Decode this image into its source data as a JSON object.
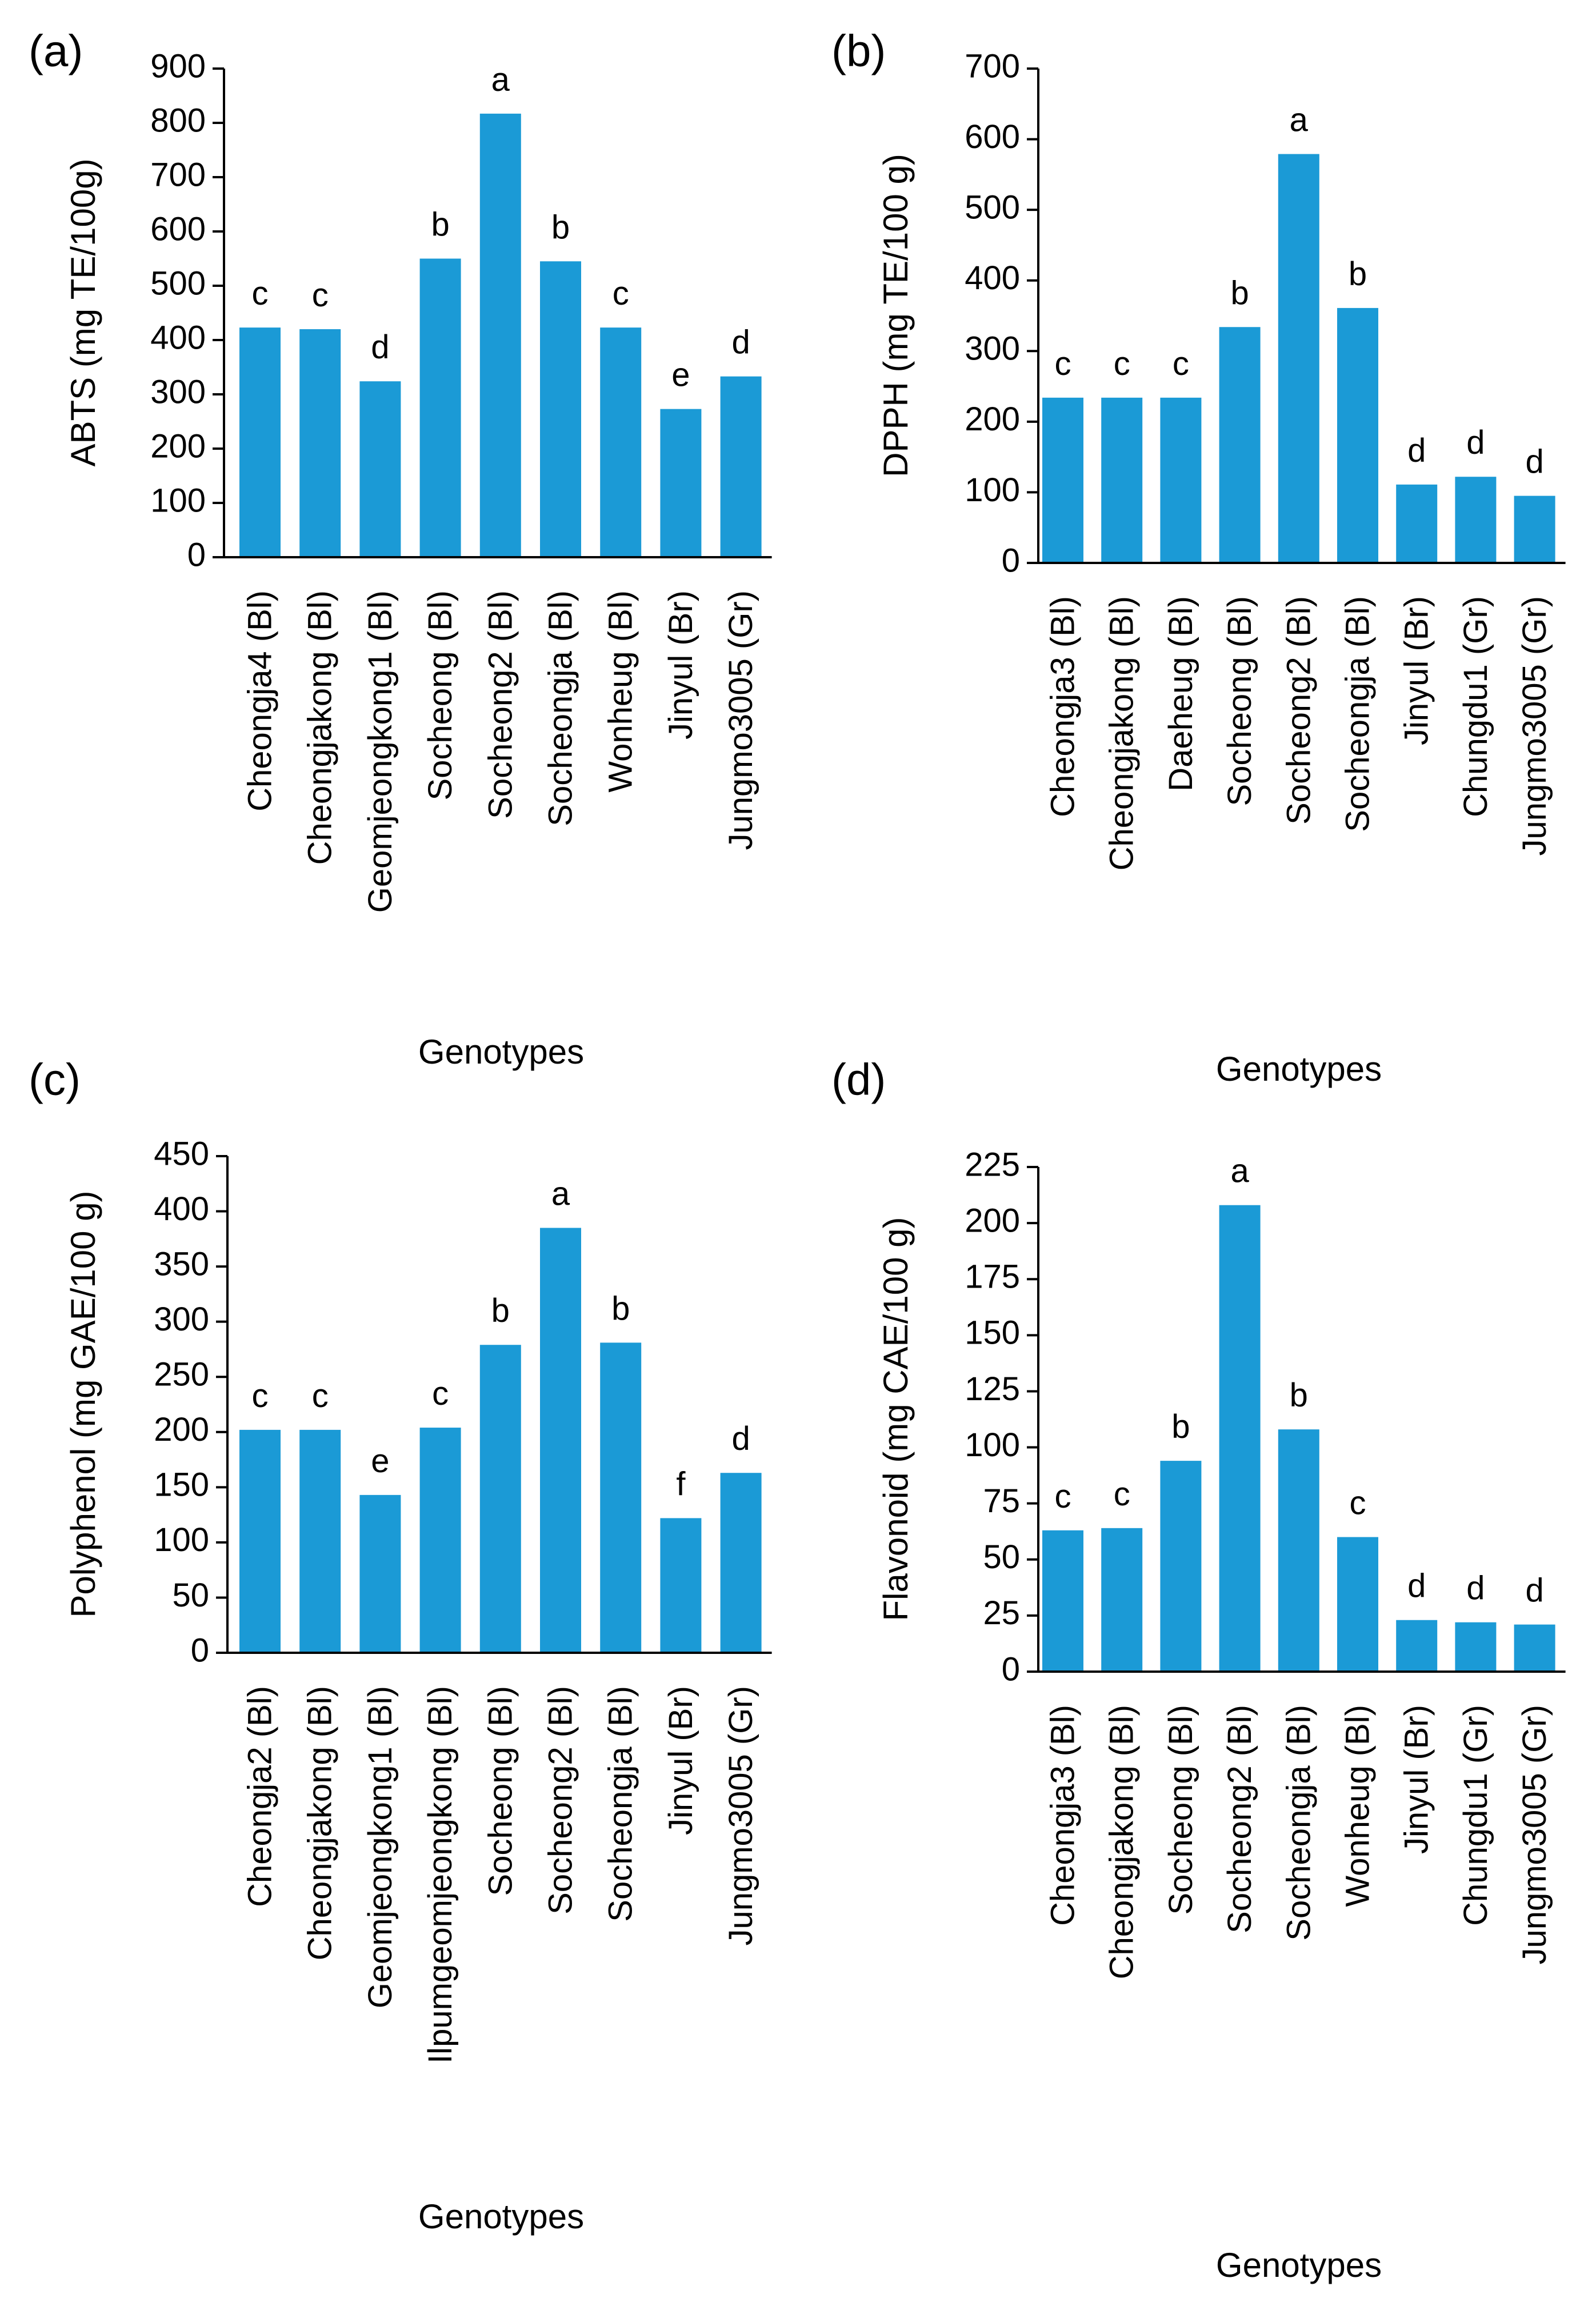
{
  "colors": {
    "bar": "#1b9ad6",
    "axis": "#000000",
    "background": "#ffffff"
  },
  "chart_data": [
    {
      "panel_label": "(a)",
      "type": "bar",
      "categories": [
        "Cheongja4 (Bl)",
        "Cheongjakong (Bl)",
        "Geomjeongkong1 (Bl)",
        "Socheong (Bl)",
        "Socheong2 (Bl)",
        "Socheongja (Bl)",
        "Wonheug (Bl)",
        "Jinyul (Br)",
        "Jungmo3005 (Gr)"
      ],
      "values": [
        423,
        420,
        324,
        550,
        817,
        545,
        423,
        273,
        333
      ],
      "significance_letters": [
        "c",
        "c",
        "d",
        "b",
        "a",
        "b",
        "c",
        "e",
        "d"
      ],
      "ylabel": "ABTS (mg TE/100g)",
      "xlabel": "Genotypes",
      "ylim": [
        0,
        900
      ],
      "yticks": [
        0,
        100,
        200,
        300,
        400,
        500,
        600,
        700,
        800,
        900
      ],
      "grid": false,
      "legend": "none"
    },
    {
      "panel_label": "(b)",
      "type": "bar",
      "categories": [
        "Cheongja3 (Bl)",
        "Cheongjakong (Bl)",
        "Daeheug (Bl)",
        "Socheong (Bl)",
        "Socheong2 (Bl)",
        "Socheongja (Bl)",
        "Jinyul (Br)",
        "Chungdu1 (Gr)",
        "Jungmo3005 (Gr)"
      ],
      "values": [
        234,
        234,
        234,
        334,
        579,
        361,
        111,
        122,
        95
      ],
      "significance_letters": [
        "c",
        "c",
        "c",
        "b",
        "a",
        "b",
        "d",
        "d",
        "d"
      ],
      "ylabel": "DPPH (mg TE/100 g)",
      "xlabel": "Genotypes",
      "ylim": [
        0,
        700
      ],
      "yticks": [
        0,
        100,
        200,
        300,
        400,
        500,
        600,
        700
      ],
      "grid": false,
      "legend": "none"
    },
    {
      "panel_label": "(c)",
      "type": "bar",
      "categories": [
        "Cheongja2 (Bl)",
        "Cheongjakong (Bl)",
        "Geomjeongkong1 (Bl)",
        "Ilpumgeomjeongkong (Bl)",
        "Socheong (Bl)",
        "Socheong2 (Bl)",
        "Socheongja (Bl)",
        "Jinyul (Br)",
        "Jungmo3005 (Gr)"
      ],
      "values": [
        202,
        202,
        143,
        204,
        279,
        385,
        281,
        122,
        163
      ],
      "significance_letters": [
        "c",
        "c",
        "e",
        "c",
        "b",
        "a",
        "b",
        "f",
        "d"
      ],
      "ylabel": "Polyphenol (mg GAE/100 g)",
      "xlabel": "Genotypes",
      "ylim": [
        0,
        450
      ],
      "yticks": [
        0,
        50,
        100,
        150,
        200,
        250,
        300,
        350,
        400,
        450
      ],
      "grid": false,
      "legend": "none"
    },
    {
      "panel_label": "(d)",
      "type": "bar",
      "categories": [
        "Cheongja3 (Bl)",
        "Cheongjakong (Bl)",
        "Socheong (Bl)",
        "Socheong2 (Bl)",
        "Socheongja (Bl)",
        "Wonheug (Bl)",
        "Jinyul (Br)",
        "Chungdu1 (Gr)",
        "Jungmo3005 (Gr)"
      ],
      "values": [
        63,
        64,
        94,
        208,
        108,
        60,
        23,
        22,
        21
      ],
      "significance_letters": [
        "c",
        "c",
        "b",
        "a",
        "b",
        "c",
        "d",
        "d",
        "d"
      ],
      "ylabel": "Flavonoid (mg CAE/100 g)",
      "xlabel": "Genotypes",
      "ylim": [
        0,
        225
      ],
      "yticks": [
        0,
        25,
        50,
        75,
        100,
        125,
        150,
        175,
        200,
        225
      ],
      "grid": false,
      "legend": "none"
    }
  ]
}
